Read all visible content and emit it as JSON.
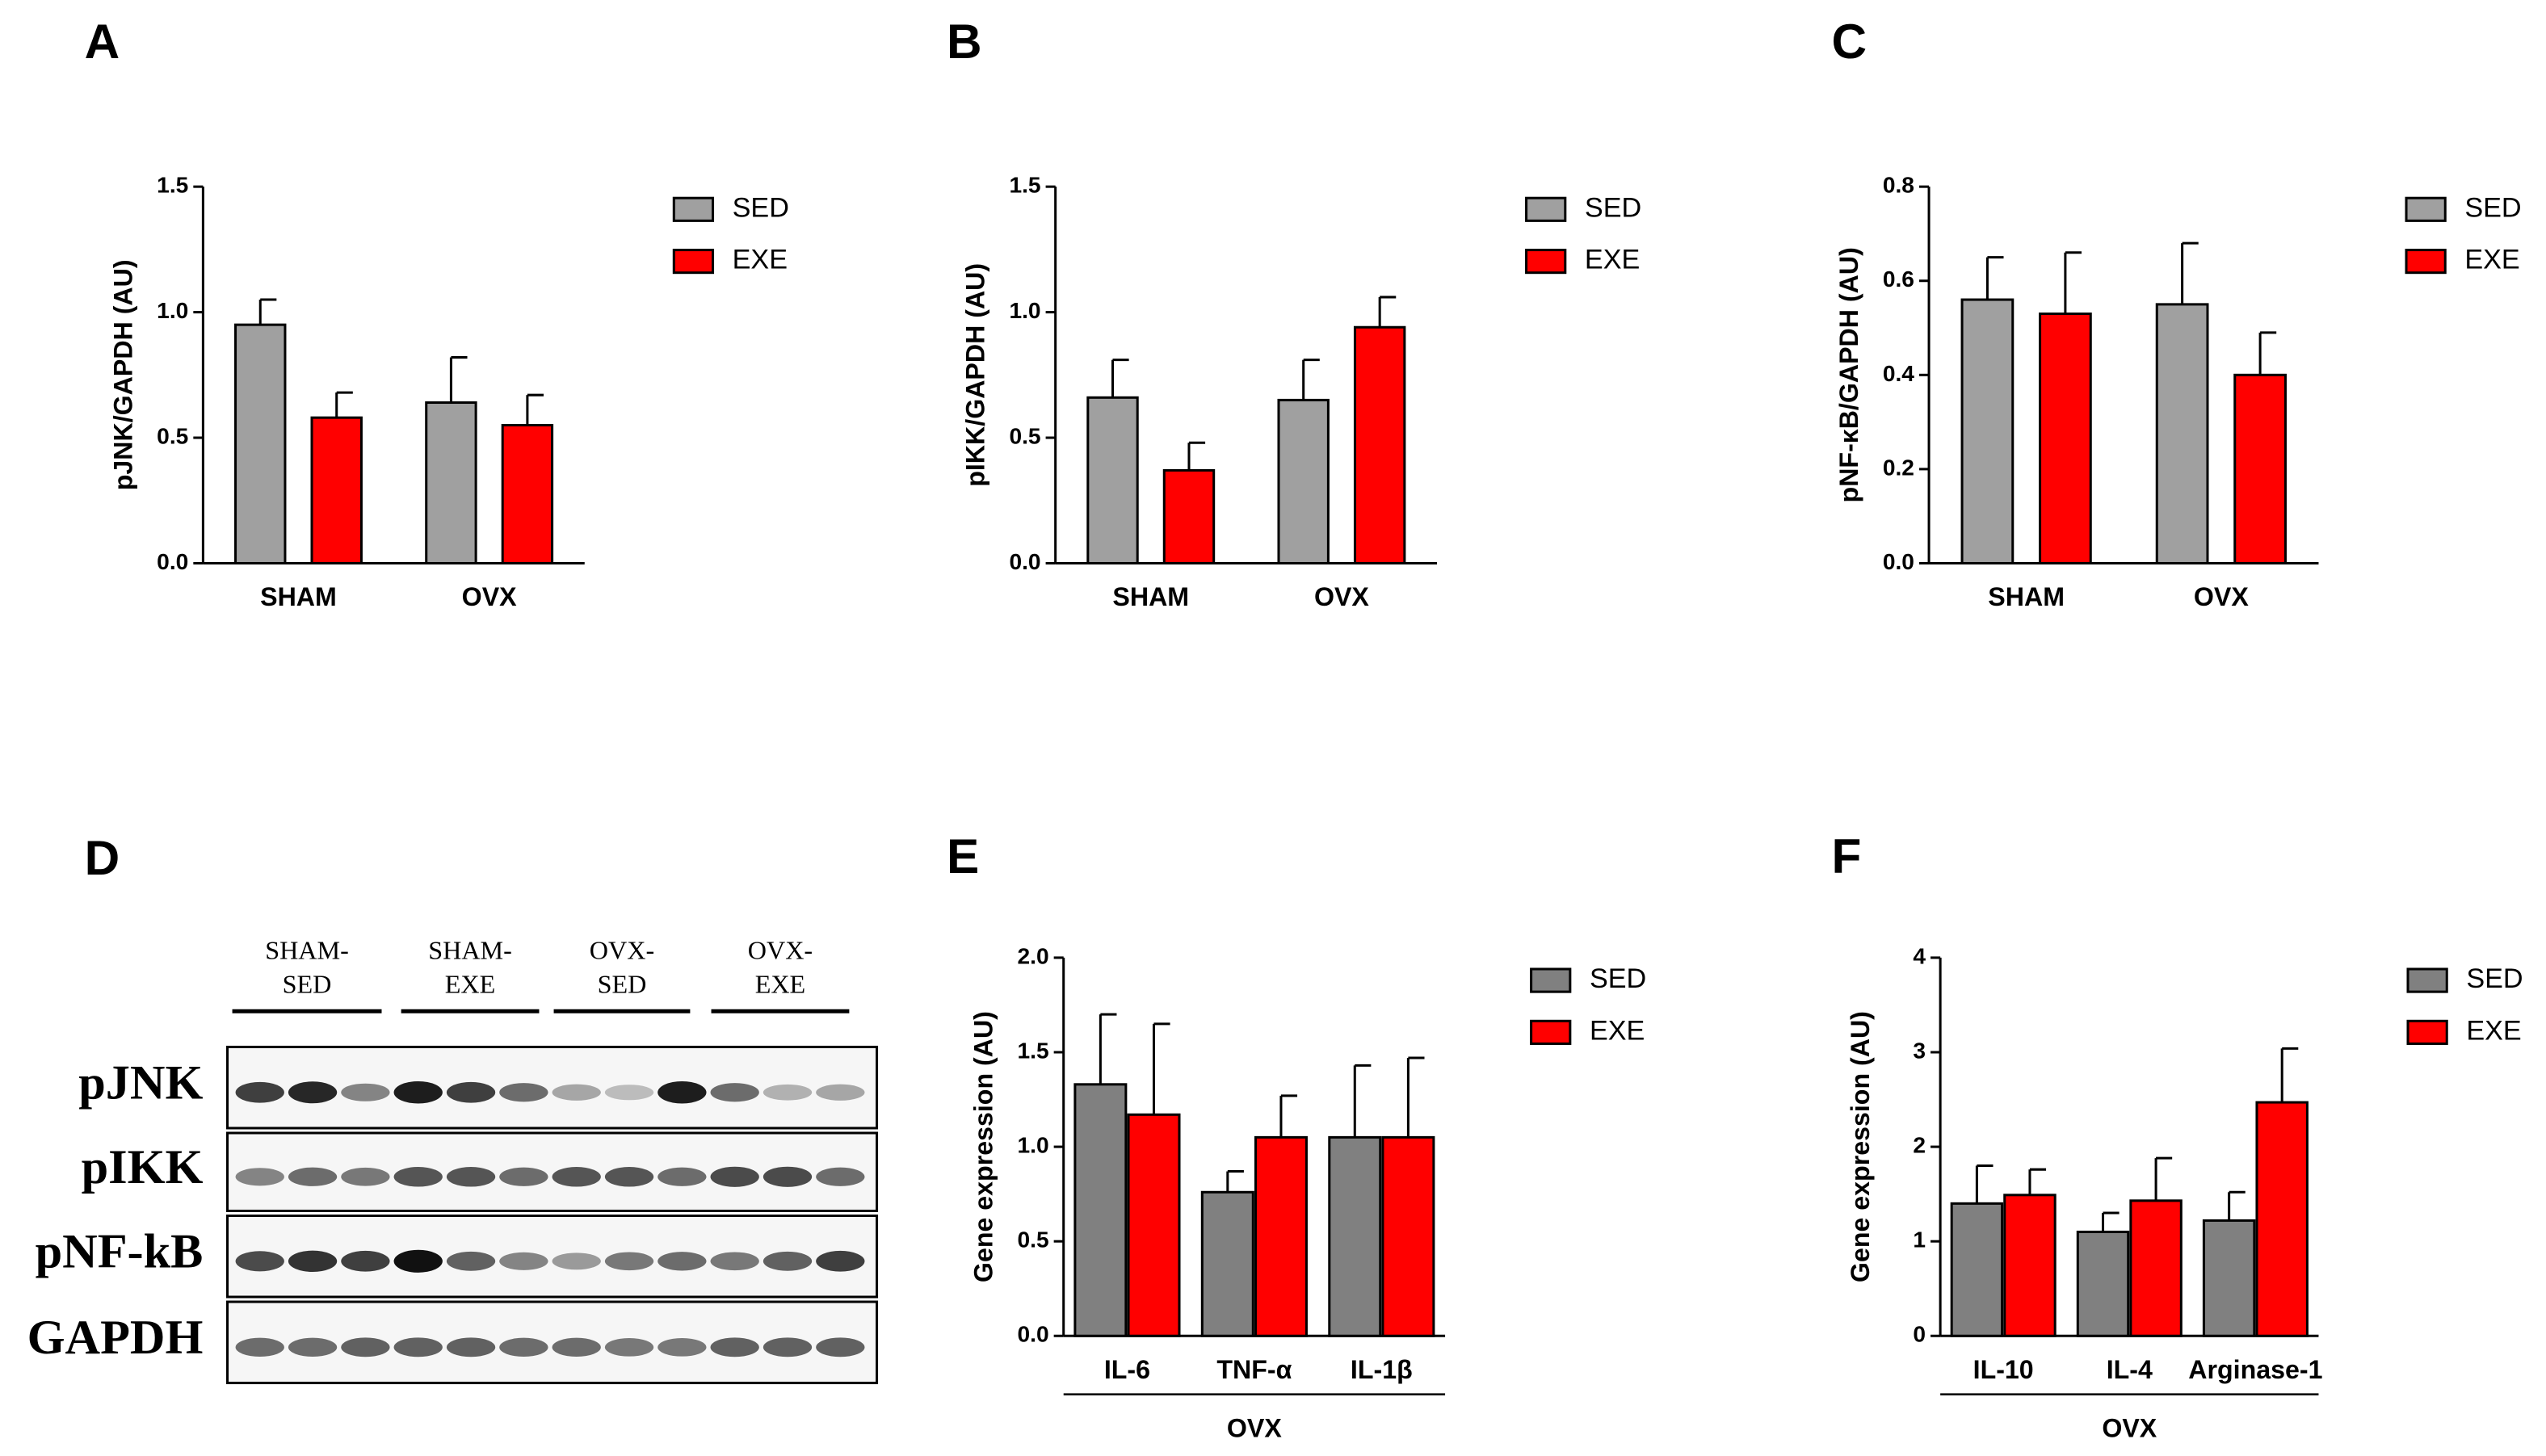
{
  "chart_data": [
    {
      "type": "bar",
      "panel": "A",
      "ylabel": "pJNK/GAPDH (AU)",
      "categories": [
        "SHAM",
        "OVX"
      ],
      "series": [
        {
          "name": "SED",
          "color": "#a0a0a0",
          "values": [
            0.95,
            0.64
          ],
          "errors": [
            0.1,
            0.18
          ]
        },
        {
          "name": "EXE",
          "color": "#ff0000",
          "values": [
            0.58,
            0.55
          ],
          "errors": [
            0.1,
            0.12
          ]
        }
      ],
      "ylim": [
        0,
        1.5
      ],
      "yticks": [
        {
          "value": 0,
          "label": "0.0"
        },
        {
          "value": 0.5,
          "label": "0.5"
        },
        {
          "value": 1,
          "label": "1.0"
        },
        {
          "value": 1.5,
          "label": "1.5"
        }
      ]
    },
    {
      "type": "bar",
      "panel": "B",
      "ylabel": "pIKK/GAPDH (AU)",
      "categories": [
        "SHAM",
        "OVX"
      ],
      "series": [
        {
          "name": "SED",
          "color": "#a0a0a0",
          "values": [
            0.66,
            0.65
          ],
          "errors": [
            0.15,
            0.16
          ]
        },
        {
          "name": "EXE",
          "color": "#ff0000",
          "values": [
            0.37,
            0.94
          ],
          "errors": [
            0.11,
            0.12
          ]
        }
      ],
      "ylim": [
        0,
        1.5
      ],
      "yticks": [
        {
          "value": 0,
          "label": "0.0"
        },
        {
          "value": 0.5,
          "label": "0.5"
        },
        {
          "value": 1,
          "label": "1.0"
        },
        {
          "value": 1.5,
          "label": "1.5"
        }
      ]
    },
    {
      "type": "bar",
      "panel": "C",
      "ylabel": "pNF-κB/GAPDH (AU)",
      "categories": [
        "SHAM",
        "OVX"
      ],
      "series": [
        {
          "name": "SED",
          "color": "#a0a0a0",
          "values": [
            0.56,
            0.55
          ],
          "errors": [
            0.09,
            0.13
          ]
        },
        {
          "name": "EXE",
          "color": "#ff0000",
          "values": [
            0.53,
            0.4
          ],
          "errors": [
            0.13,
            0.09
          ]
        }
      ],
      "ylim": [
        0,
        0.8
      ],
      "yticks": [
        {
          "value": 0,
          "label": "0.0"
        },
        {
          "value": 0.2,
          "label": "0.2"
        },
        {
          "value": 0.4,
          "label": "0.4"
        },
        {
          "value": 0.6,
          "label": "0.6"
        },
        {
          "value": 0.8,
          "label": "0.8"
        }
      ]
    },
    {
      "type": "bar",
      "panel": "E",
      "ylabel": "Gene expression (AU)",
      "categories": [
        "IL-6",
        "TNF-α",
        "IL-1β"
      ],
      "group_label": "OVX",
      "series": [
        {
          "name": "SED",
          "color": "#808080",
          "values": [
            1.33,
            0.76,
            1.05
          ],
          "errors": [
            0.37,
            0.11,
            0.38
          ]
        },
        {
          "name": "EXE",
          "color": "#ff0000",
          "values": [
            1.17,
            1.05,
            1.05
          ],
          "errors": [
            0.48,
            0.22,
            0.42
          ]
        }
      ],
      "ylim": [
        0,
        2
      ],
      "yticks": [
        {
          "value": 0,
          "label": "0.0"
        },
        {
          "value": 0.5,
          "label": "0.5"
        },
        {
          "value": 1,
          "label": "1.0"
        },
        {
          "value": 1.5,
          "label": "1.5"
        },
        {
          "value": 2,
          "label": "2.0"
        }
      ]
    },
    {
      "type": "bar",
      "panel": "F",
      "ylabel": "Gene expression (AU)",
      "categories": [
        "IL-10",
        "IL-4",
        "Arginase-1"
      ],
      "group_label": "OVX",
      "series": [
        {
          "name": "SED",
          "color": "#808080",
          "values": [
            1.4,
            1.1,
            1.22
          ],
          "errors": [
            0.4,
            0.2,
            0.3
          ]
        },
        {
          "name": "EXE",
          "color": "#ff0000",
          "values": [
            1.49,
            1.43,
            2.47
          ],
          "errors": [
            0.27,
            0.45,
            0.57
          ]
        }
      ],
      "ylim": [
        0,
        4
      ],
      "yticks": [
        0,
        1,
        2,
        3,
        4
      ]
    }
  ],
  "blot": {
    "panel": "D",
    "groups": [
      [
        "SHAM-",
        "SED"
      ],
      [
        "SHAM-",
        "EXE"
      ],
      [
        "OVX-",
        "SED"
      ],
      [
        "OVX-",
        "EXE"
      ]
    ],
    "rows": [
      "pJNK",
      "pIKK",
      "pNF-kB",
      "GAPDH"
    ]
  }
}
